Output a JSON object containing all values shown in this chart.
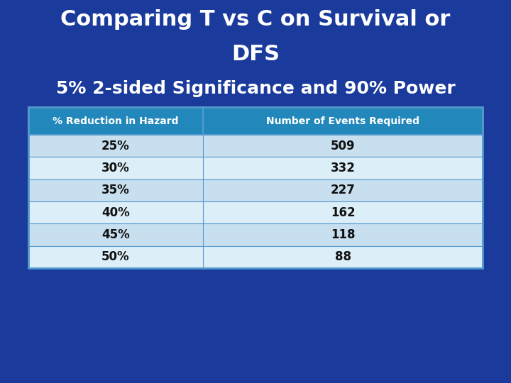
{
  "title_line1": "Comparing T vs C on Survival or",
  "title_line2": "DFS",
  "subtitle": "5% 2-sided Significance and 90% Power",
  "col_headers": [
    "% Reduction in Hazard",
    "Number of Events Required"
  ],
  "rows": [
    [
      "25%",
      "509"
    ],
    [
      "30%",
      "332"
    ],
    [
      "35%",
      "227"
    ],
    [
      "40%",
      "162"
    ],
    [
      "45%",
      "118"
    ],
    [
      "50%",
      "88"
    ]
  ],
  "bg_color": "#1a3a9c",
  "title_color": "#ffffff",
  "subtitle_color": "#ffffff",
  "header_bg": "#2288bb",
  "header_text_color": "#ffffff",
  "row_color_a": "#c8dff0",
  "row_color_b": "#dceef8",
  "row_text_color": "#111111",
  "table_border_color": "#5599cc",
  "title_fontsize": 22,
  "subtitle_fontsize": 18,
  "header_fontsize": 10,
  "row_fontsize": 12
}
